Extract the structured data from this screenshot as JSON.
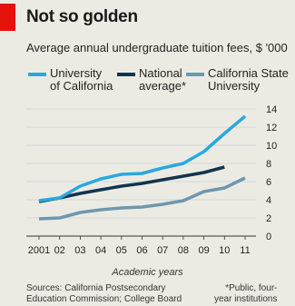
{
  "header": {
    "title": "Not so golden"
  },
  "chart_data": {
    "type": "line",
    "title": "Not so golden",
    "subtitle": "Average annual undergraduate tuition fees, $ '000",
    "xlabel": "Academic years",
    "ylabel": "",
    "x": [
      2001,
      2002,
      2003,
      2004,
      2005,
      2006,
      2007,
      2008,
      2009,
      2010,
      2011
    ],
    "x_tick_labels": [
      "2001",
      "02",
      "03",
      "04",
      "05",
      "06",
      "07",
      "08",
      "09",
      "10",
      "11"
    ],
    "ylim": [
      0,
      14
    ],
    "y_ticks": [
      0,
      2,
      4,
      6,
      8,
      10,
      12,
      14
    ],
    "y_axis_side": "right",
    "grid": true,
    "legend_position": "top",
    "series": [
      {
        "name": "University of California",
        "name_lines": [
          "University",
          "of California"
        ],
        "color": "#29a8e0",
        "values": [
          3.9,
          4.2,
          5.5,
          6.3,
          6.8,
          6.9,
          7.5,
          8.0,
          9.3,
          11.3,
          13.2
        ]
      },
      {
        "name": "National average*",
        "name_lines": [
          "National",
          "average*"
        ],
        "color": "#13344d",
        "values": [
          3.8,
          4.2,
          4.7,
          5.1,
          5.5,
          5.8,
          6.2,
          6.6,
          7.0,
          7.6,
          null
        ]
      },
      {
        "name": "California State University",
        "name_lines": [
          "California State",
          "University"
        ],
        "color": "#6e97b0",
        "values": [
          1.9,
          2.0,
          2.6,
          2.9,
          3.1,
          3.2,
          3.5,
          3.9,
          4.9,
          5.3,
          6.4
        ]
      }
    ]
  },
  "footer": {
    "sources_lines": [
      "Sources: California Postsecondary",
      "Education Commission; College Board"
    ],
    "note_lines": [
      "*Public, four-",
      "year institutions"
    ]
  }
}
